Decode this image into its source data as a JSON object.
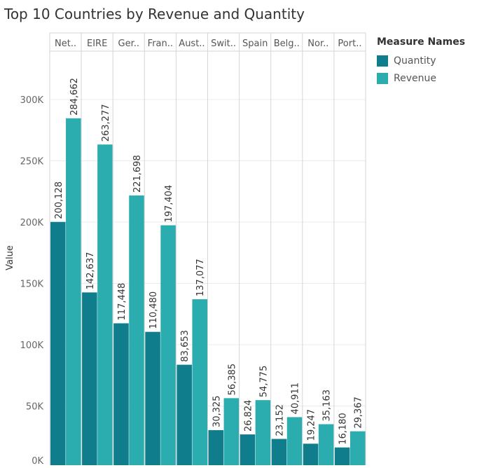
{
  "chart_data": {
    "type": "bar",
    "title": "Top 10 Countries by Revenue and Quantity",
    "ylabel": "Value",
    "categories": [
      "Net..",
      "EIRE",
      "Ger..",
      "Fran..",
      "Aust..",
      "Swit..",
      "Spain",
      "Belg..",
      "Nor..",
      "Port.."
    ],
    "series": [
      {
        "name": "Quantity",
        "color": "#0f7d8c",
        "values": [
          200128,
          142637,
          117448,
          110480,
          83653,
          30325,
          26824,
          23152,
          19247,
          16180
        ],
        "labels": [
          "200,128",
          "142,637",
          "117,448",
          "110,480",
          "83,653",
          "30,325",
          "26,824",
          "23,152",
          "19,247",
          "16,180"
        ]
      },
      {
        "name": "Revenue",
        "color": "#2badb0",
        "values": [
          284662,
          263277,
          221698,
          197404,
          137077,
          56385,
          54775,
          40911,
          35163,
          29367
        ],
        "labels": [
          "284,662",
          "263,277",
          "221,698",
          "197,404",
          "137,077",
          "56,385",
          "54,775",
          "40,911",
          "35,163",
          "29,367"
        ]
      }
    ],
    "yticks": [
      0,
      50000,
      100000,
      150000,
      200000,
      250000,
      300000
    ],
    "ytick_labels": [
      "0K",
      "50K",
      "100K",
      "150K",
      "200K",
      "250K",
      "300K"
    ],
    "ylim": [
      0,
      340000
    ],
    "grid": true,
    "legend_title": "Measure Names",
    "legend_position": "right"
  }
}
